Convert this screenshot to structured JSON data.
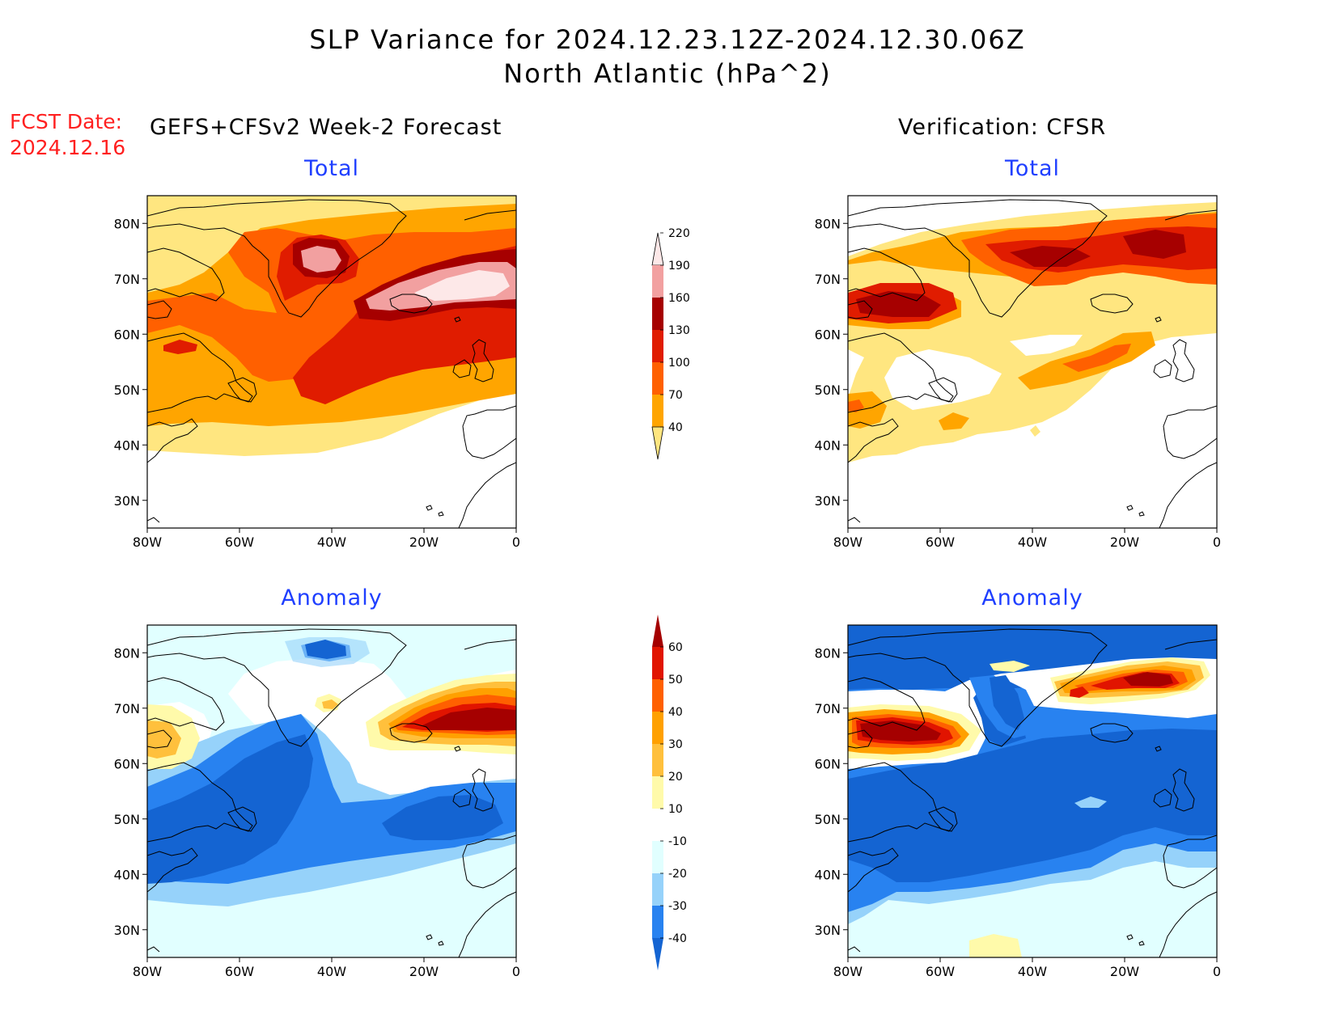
{
  "title": {
    "line1": "SLP Variance for 2024.12.23.12Z-2024.12.30.06Z",
    "line2": "North Atlantic (hPa^2)"
  },
  "fcst_date": {
    "label": "FCST Date:",
    "value": "2024.12.16"
  },
  "columns": {
    "forecast": "GEFS+CFSv2 Week-2 Forecast",
    "verification": "Verification: CFSR"
  },
  "panel_titles": {
    "total": "Total",
    "anomaly": "Anomaly"
  },
  "axes": {
    "lon_ticks": [
      "80W",
      "60W",
      "40W",
      "20W",
      "0"
    ],
    "lat_ticks": [
      "80N",
      "70N",
      "60N",
      "50N",
      "40N",
      "30N"
    ]
  },
  "colorbars": {
    "total": {
      "levels": [
        "40",
        "70",
        "100",
        "130",
        "160",
        "190",
        "220"
      ],
      "colors": [
        "#ffe680",
        "#ffa500",
        "#ff6000",
        "#e01c00",
        "#a60000",
        "#f2a0a0",
        "#fde8e8"
      ]
    },
    "anomaly": {
      "levels": [
        "-40",
        "-30",
        "-20",
        "-10",
        "10",
        "20",
        "30",
        "40",
        "50",
        "60"
      ],
      "colors": [
        "#1464d2",
        "#2882f0",
        "#96d2fa",
        "#e1ffff",
        "#ffffff",
        "#fffaaa",
        "#ffc03c",
        "#ffa000",
        "#ff6000",
        "#e11400",
        "#a50000"
      ]
    }
  },
  "chart_data": [
    {
      "type": "heatmap",
      "panel": "forecast-total",
      "field": "SLP variance total (hPa^2)",
      "x_range": [
        -80,
        0
      ],
      "y_range": [
        25,
        85
      ],
      "features": [
        {
          "lon": -40,
          "lat": 72,
          "value": 200
        },
        {
          "lon": -12,
          "lat": 66,
          "value": 225
        },
        {
          "lon": -30,
          "lat": 55,
          "value": 145
        },
        {
          "lon": -72,
          "lat": 55,
          "value": 120
        },
        {
          "lon": -55,
          "lat": 65,
          "value": 95
        }
      ]
    },
    {
      "type": "heatmap",
      "panel": "verification-total",
      "field": "SLP variance total (hPa^2)",
      "x_range": [
        -80,
        0
      ],
      "y_range": [
        25,
        85
      ],
      "features": [
        {
          "lon": -32,
          "lat": 73,
          "value": 165
        },
        {
          "lon": -12,
          "lat": 76,
          "value": 170
        },
        {
          "lon": -63,
          "lat": 64,
          "value": 140
        },
        {
          "lon": -25,
          "lat": 55,
          "value": 110
        },
        {
          "lon": -45,
          "lat": 55,
          "value": 20
        }
      ]
    },
    {
      "type": "heatmap",
      "panel": "forecast-anomaly",
      "field": "SLP variance anomaly (hPa^2)",
      "x_range": [
        -80,
        0
      ],
      "y_range": [
        25,
        85
      ],
      "features": [
        {
          "lon": -8,
          "lat": 67,
          "value": 60
        },
        {
          "lon": -35,
          "lat": 70,
          "value": 25
        },
        {
          "lon": -75,
          "lat": 62,
          "value": 25
        },
        {
          "lon": -62,
          "lat": 48,
          "value": -45
        },
        {
          "lon": -18,
          "lat": 50,
          "value": -42
        },
        {
          "lon": -40,
          "lat": 81,
          "value": -35
        }
      ]
    },
    {
      "type": "heatmap",
      "panel": "verification-anomaly",
      "field": "SLP variance anomaly (hPa^2)",
      "x_range": [
        -80,
        0
      ],
      "y_range": [
        25,
        85
      ],
      "features": [
        {
          "lon": -67,
          "lat": 65,
          "value": 65
        },
        {
          "lon": -12,
          "lat": 76,
          "value": 65
        },
        {
          "lon": -28,
          "lat": 74,
          "value": 40
        },
        {
          "lon": -40,
          "lat": 50,
          "value": -50
        },
        {
          "lon": -50,
          "lat": 28,
          "value": 15
        }
      ]
    }
  ]
}
